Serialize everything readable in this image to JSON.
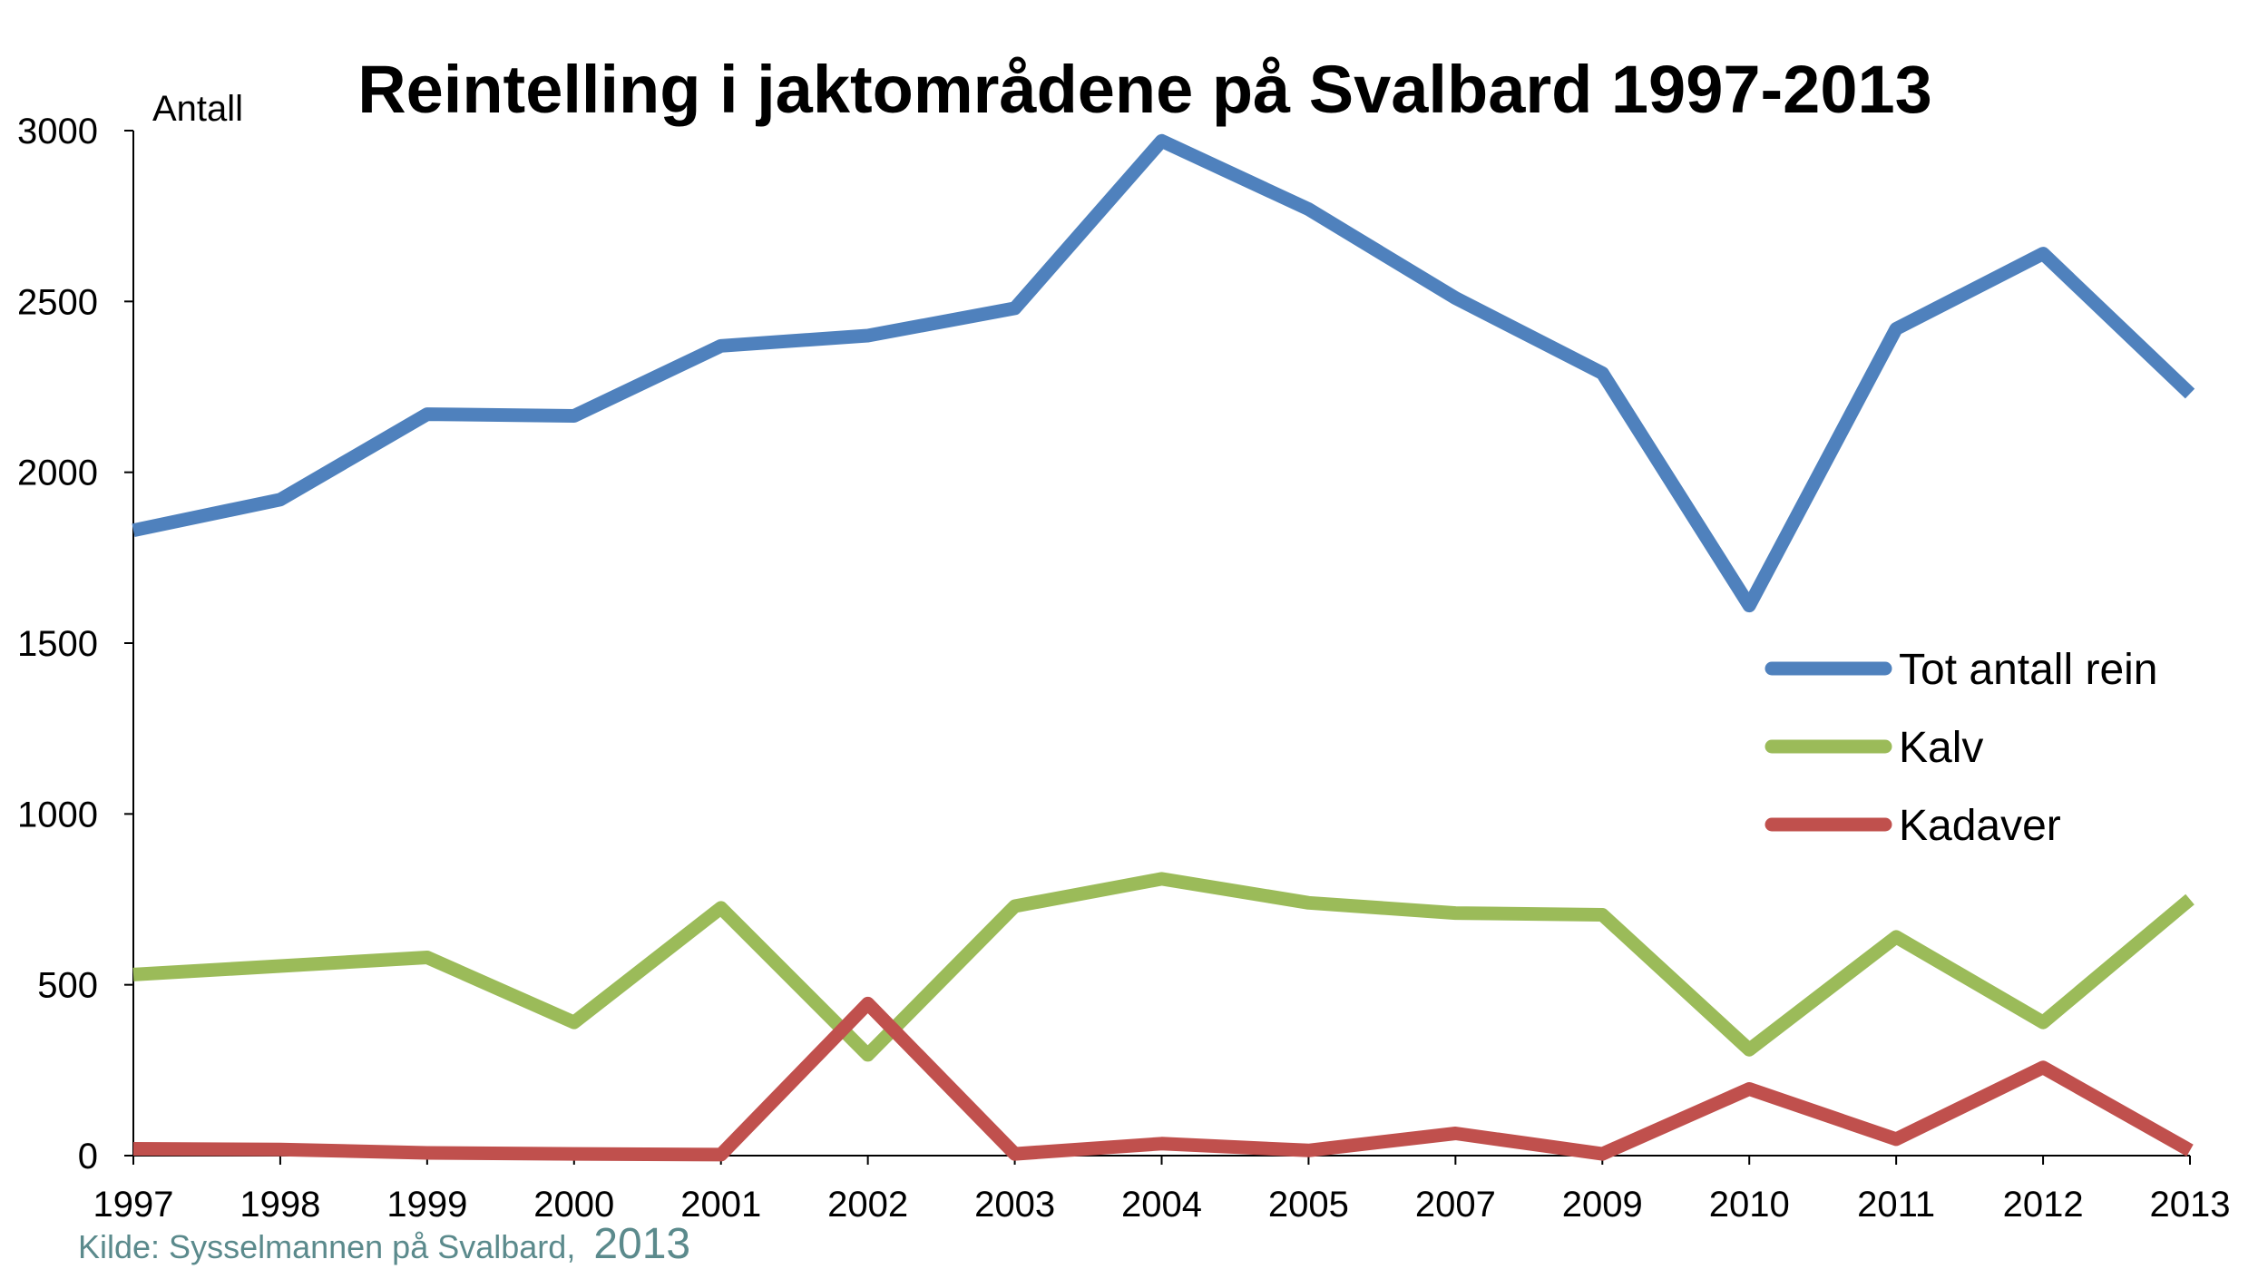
{
  "colors": {
    "tot": "#4f81bd",
    "kalv": "#9bbb59",
    "kadaver": "#c0504d",
    "axis": "#000000",
    "source": "#5b8a8c"
  },
  "source": {
    "text": "Kilde: Sysselmannen på Svalbard,",
    "year": "2013"
  },
  "chart_data": {
    "type": "line",
    "title": "Reintelling i jaktområdene på Svalbard 1997-2013",
    "ylabel": "Antall",
    "xlabel": "",
    "categories": [
      "1997",
      "1998",
      "1999",
      "2000",
      "2001",
      "2002",
      "2003",
      "2004",
      "2005",
      "2007",
      "2009",
      "2010",
      "2011",
      "2012",
      "2013"
    ],
    "ylim": [
      0,
      3000
    ],
    "yticks": [
      0,
      500,
      1000,
      1500,
      2000,
      2500,
      3000
    ],
    "grid": false,
    "legend_position": "right",
    "series": [
      {
        "name": "Tot antall rein",
        "color_key": "tot",
        "values": [
          1830,
          1920,
          2170,
          2165,
          2370,
          2400,
          2480,
          2970,
          2770,
          2510,
          2290,
          1610,
          2420,
          2640,
          2230
        ]
      },
      {
        "name": "Kalv",
        "color_key": "kalv",
        "values": [
          530,
          555,
          580,
          390,
          725,
          295,
          730,
          810,
          740,
          710,
          705,
          310,
          640,
          390,
          750
        ]
      },
      {
        "name": "Kadaver",
        "color_key": "kadaver",
        "values": [
          20,
          18,
          8,
          5,
          3,
          445,
          5,
          35,
          15,
          65,
          5,
          195,
          48,
          258,
          15
        ]
      }
    ]
  }
}
